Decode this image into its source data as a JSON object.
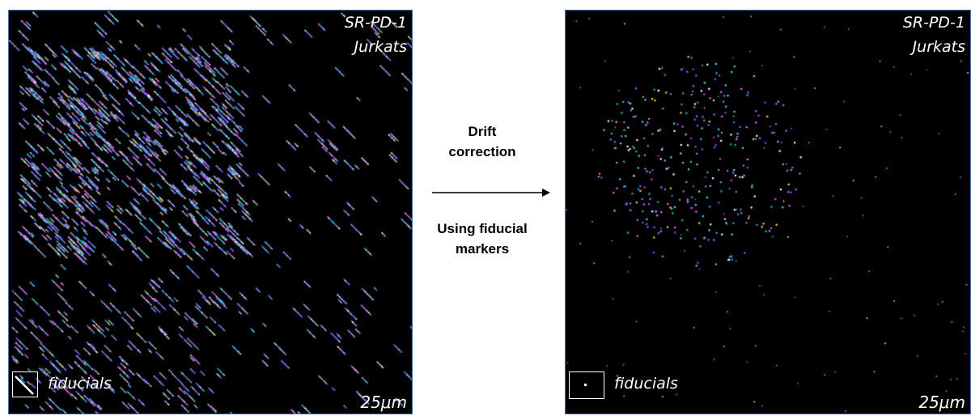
{
  "left_panel": {
    "sample_line1": "SR-PD-1",
    "sample_line2": "Jurkats",
    "fiducial_label": "fiducials",
    "scale_label": "25μm"
  },
  "right_panel": {
    "sample_line1": "SR-PD-1",
    "sample_line2": "Jurkats",
    "fiducial_label": "fiducials",
    "scale_label": "25μm"
  },
  "arrow": {
    "top_line1": "Drift",
    "top_line2": "correction",
    "bottom_line1": "Using fiducial",
    "bottom_line2": "markers"
  },
  "colors": {
    "background": "#000000",
    "frame": "#4a6fa5",
    "point_palette": [
      "#6a5cff",
      "#3aa0ff",
      "#b050ff",
      "#40e0ff",
      "#ffffff",
      "#7f7fff",
      "#20c0a0",
      "#ff60ff",
      "#ffd040"
    ]
  }
}
